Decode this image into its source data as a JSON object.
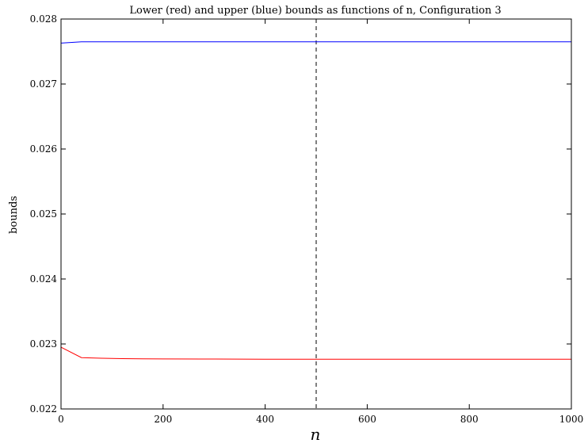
{
  "chart_data": {
    "type": "line",
    "title": "Lower (red) and upper (blue) bounds as functions of n, Configuration 3",
    "xlabel": "n",
    "ylabel": "bounds",
    "xlim": [
      0,
      1000
    ],
    "ylim": [
      0.022,
      0.028
    ],
    "xticks": [
      0,
      200,
      400,
      600,
      800,
      1000
    ],
    "xtick_labels": [
      "0",
      "200",
      "400",
      "600",
      "800",
      "1000"
    ],
    "yticks": [
      0.022,
      0.023,
      0.024,
      0.025,
      0.026,
      0.027,
      0.028
    ],
    "ytick_labels": [
      "0.022",
      "0.023",
      "0.024",
      "0.025",
      "0.026",
      "0.027",
      "0.028"
    ],
    "grid": false,
    "vertical_line": {
      "x": 500,
      "style": "dashed",
      "color": "#000000"
    },
    "series": [
      {
        "color": "#0000ff",
        "x": [
          0,
          40,
          80,
          120,
          200,
          300,
          400,
          500,
          600,
          700,
          800,
          900,
          1000
        ],
        "y": [
          0.02763,
          0.02765,
          0.02765,
          0.02765,
          0.02765,
          0.02765,
          0.02765,
          0.02765,
          0.02765,
          0.02765,
          0.02765,
          0.02765,
          0.02765
        ]
      },
      {
        "color": "#ff0000",
        "x": [
          0,
          40,
          80,
          120,
          160,
          200,
          300,
          400,
          500,
          600,
          700,
          800,
          900,
          1000
        ],
        "y": [
          0.02295,
          0.02279,
          0.02278,
          0.022775,
          0.022772,
          0.02277,
          0.022768,
          0.022766,
          0.022765,
          0.022765,
          0.022765,
          0.022765,
          0.022765,
          0.022765
        ]
      }
    ]
  }
}
